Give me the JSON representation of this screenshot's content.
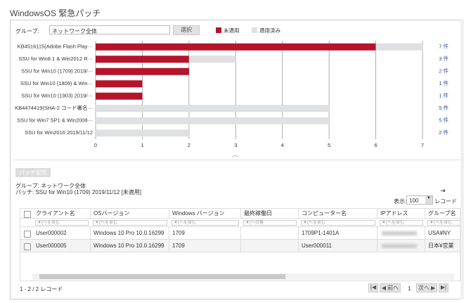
{
  "header": {
    "title": "WindowsOS 緊急パッチ"
  },
  "group_selector": {
    "label": "グループ:",
    "value": "ネットワーク全体",
    "button": "選択"
  },
  "chart_data": {
    "type": "bar",
    "orientation": "horizontal",
    "stacked": true,
    "categories": [
      "KB4516115(Adobe Flash Play···",
      "SSU for Win8.1 & Win2012 R···",
      "SSU for Win10 (1709) 2019/···",
      "SSU for Win10 (1809) & Win···",
      "SSU for Win10 (1903) 2019/···",
      "KB4474419(SHA-2 コード署名···",
      "SSU for Win7 SP1 & Win2008···",
      "SSU for Win2016 2019/11/12"
    ],
    "series": [
      {
        "name": "未適用",
        "color": "#b5142b",
        "values": [
          6,
          2,
          2,
          1,
          1,
          0,
          0,
          0
        ]
      },
      {
        "name": "適用済み",
        "color": "#dfe0e4",
        "values": [
          1,
          1,
          0,
          0,
          0,
          5,
          5,
          2
        ]
      }
    ],
    "total_labels": [
      "7 件",
      "3 件",
      "2 件",
      "1 件",
      "1 件",
      "5 件",
      "5 件",
      "2 件"
    ],
    "xlim": [
      0,
      7
    ],
    "xticks": [
      0,
      1,
      2,
      3,
      4,
      5,
      6,
      7
    ],
    "grid": true,
    "legend": "top"
  },
  "actions": {
    "deploy_button": "パッチ配布"
  },
  "selection": {
    "group": "グループ: ネットワーク全体",
    "patch": "パッチ: SSU for Win10 (1709) 2019/11/12 [未適用]"
  },
  "display": {
    "label": "表示:",
    "value": "100",
    "unit": "レコード"
  },
  "table": {
    "columns": [
      "クライアント名",
      "OSバージョン",
      "Windows バージョン",
      "最終稼働日",
      "コンピューター名",
      "IPアドレス",
      "グループ名"
    ],
    "filters": [
      "(へを含む",
      "(へを含む",
      "(へを含む",
      "(への後",
      "(へを含む",
      "(へを含む",
      "(へを含む"
    ],
    "rows": [
      {
        "client": "User000002",
        "os": "Windows 10 Pro 10.0.16299",
        "winver": "1709",
        "computer": "1709P1-1401A",
        "group": "USA¥NY"
      },
      {
        "client": "User000005",
        "os": "Windows 10 Pro 10.0.16299",
        "winver": "1709",
        "computer": "User000011",
        "group": "日本¥営業"
      }
    ]
  },
  "footer": {
    "records": "1 - 2 / 2 レコード",
    "prev": "前へ",
    "page": "1",
    "next": "次へ"
  }
}
